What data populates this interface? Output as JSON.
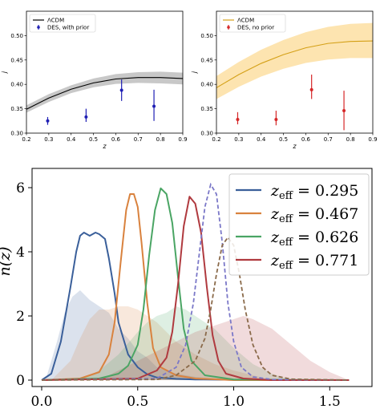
{
  "chart_data": [
    {
      "type": "scatter",
      "xlabel": "z",
      "ylabel": "j",
      "xlim": [
        0.2,
        0.9
      ],
      "ylim": [
        0.3,
        0.55
      ],
      "xticks": [
        "0.2",
        "0.3",
        "0.4",
        "0.5",
        "0.6",
        "0.7",
        "0.8",
        "0.9"
      ],
      "yticks": [
        "0.30",
        "0.35",
        "0.40",
        "0.45",
        "0.50"
      ],
      "legend_position": "top-left",
      "model": {
        "name": "ΛCDM",
        "color": "#000000",
        "band_color": "#c8c8c8",
        "x": [
          0.2,
          0.3,
          0.4,
          0.5,
          0.6,
          0.7,
          0.8,
          0.9
        ],
        "y": [
          0.349,
          0.372,
          0.39,
          0.403,
          0.411,
          0.414,
          0.414,
          0.412
        ],
        "lo": [
          0.342,
          0.364,
          0.382,
          0.394,
          0.401,
          0.403,
          0.402,
          0.4
        ],
        "hi": [
          0.357,
          0.38,
          0.398,
          0.412,
          0.421,
          0.425,
          0.426,
          0.424
        ]
      },
      "series": [
        {
          "name": "DES, with prior",
          "color": "#1f1fb4",
          "x": [
            0.295,
            0.467,
            0.626,
            0.771
          ],
          "y": [
            0.325,
            0.333,
            0.388,
            0.355
          ],
          "yerr_lo": [
            0.008,
            0.01,
            0.022,
            0.03
          ],
          "yerr_hi": [
            0.008,
            0.017,
            0.022,
            0.034
          ]
        }
      ]
    },
    {
      "type": "scatter",
      "xlabel": "z",
      "ylabel": "j",
      "xlim": [
        0.2,
        0.9
      ],
      "ylim": [
        0.3,
        0.55
      ],
      "xticks": [
        "0.2",
        "0.3",
        "0.4",
        "0.5",
        "0.6",
        "0.7",
        "0.8",
        "0.9"
      ],
      "yticks": [
        "0.30",
        "0.35",
        "0.40",
        "0.45",
        "0.50"
      ],
      "legend_position": "top-left",
      "model": {
        "name": "ΛCDM",
        "color": "#d4a017",
        "band_color": "#fde4b0",
        "x": [
          0.2,
          0.3,
          0.4,
          0.5,
          0.6,
          0.7,
          0.8,
          0.9
        ],
        "y": [
          0.393,
          0.42,
          0.443,
          0.461,
          0.475,
          0.484,
          0.488,
          0.489
        ],
        "lo": [
          0.37,
          0.395,
          0.416,
          0.432,
          0.444,
          0.451,
          0.454,
          0.454
        ],
        "hi": [
          0.417,
          0.446,
          0.471,
          0.491,
          0.507,
          0.518,
          0.524,
          0.526
        ]
      },
      "series": [
        {
          "name": "DES, no prior",
          "color": "#d62728",
          "x": [
            0.295,
            0.467,
            0.626,
            0.771
          ],
          "y": [
            0.328,
            0.328,
            0.389,
            0.346
          ],
          "yerr_lo": [
            0.01,
            0.012,
            0.019,
            0.04
          ],
          "yerr_hi": [
            0.015,
            0.018,
            0.031,
            0.041
          ]
        }
      ]
    },
    {
      "type": "line",
      "ylabel": "n(z)",
      "xlim": [
        -0.05,
        1.72
      ],
      "ylim": [
        -0.2,
        6.6
      ],
      "xticks": [
        "0.0",
        "0.5",
        "1.0",
        "1.5"
      ],
      "yticks": [
        "0",
        "2",
        "4",
        "6"
      ],
      "legend_position": "top-right",
      "legend": [
        {
          "label": "z_eff = 0.295",
          "sub": "eff",
          "value": "0.295",
          "color": "#3a5f9a"
        },
        {
          "label": "z_eff = 0.467",
          "sub": "eff",
          "value": "0.467",
          "color": "#d9823e"
        },
        {
          "label": "z_eff = 0.626",
          "sub": "eff",
          "value": "0.626",
          "color": "#4aa564"
        },
        {
          "label": "z_eff = 0.771",
          "sub": "eff",
          "value": "0.771",
          "color": "#b03a3f"
        }
      ],
      "solid_series": [
        {
          "name": "z_eff = 0.295",
          "color": "#3a5f9a",
          "x": [
            0.0,
            0.05,
            0.1,
            0.15,
            0.18,
            0.2,
            0.22,
            0.25,
            0.28,
            0.3,
            0.33,
            0.35,
            0.38,
            0.4,
            0.45,
            0.5,
            0.55,
            0.6,
            0.7,
            0.8,
            1.0,
            1.2,
            1.6
          ],
          "y": [
            0.0,
            0.2,
            1.2,
            2.9,
            4.0,
            4.5,
            4.6,
            4.5,
            4.6,
            4.55,
            4.4,
            3.8,
            2.7,
            1.8,
            0.8,
            0.4,
            0.18,
            0.08,
            0.04,
            0.02,
            0.01,
            0.0,
            0.0
          ]
        },
        {
          "name": "z_eff = 0.467",
          "color": "#d9823e",
          "x": [
            0.0,
            0.2,
            0.3,
            0.35,
            0.38,
            0.41,
            0.44,
            0.46,
            0.48,
            0.5,
            0.52,
            0.55,
            0.58,
            0.62,
            0.7,
            0.8,
            1.0,
            1.6
          ],
          "y": [
            0.0,
            0.05,
            0.25,
            0.8,
            1.8,
            3.6,
            5.3,
            5.8,
            5.8,
            5.4,
            4.3,
            2.4,
            1.0,
            0.4,
            0.15,
            0.05,
            0.0,
            0.0
          ]
        },
        {
          "name": "z_eff = 0.626",
          "color": "#4aa564",
          "x": [
            0.0,
            0.3,
            0.4,
            0.45,
            0.5,
            0.53,
            0.56,
            0.59,
            0.62,
            0.65,
            0.68,
            0.71,
            0.74,
            0.78,
            0.85,
            1.0,
            1.6
          ],
          "y": [
            0.0,
            0.05,
            0.2,
            0.45,
            1.1,
            2.2,
            3.9,
            5.3,
            5.98,
            5.8,
            4.9,
            3.2,
            1.6,
            0.6,
            0.15,
            0.02,
            0.0
          ]
        },
        {
          "name": "z_eff = 0.771",
          "color": "#b03a3f",
          "x": [
            0.0,
            0.5,
            0.6,
            0.65,
            0.68,
            0.71,
            0.74,
            0.77,
            0.8,
            0.83,
            0.86,
            0.89,
            0.92,
            0.96,
            1.05,
            1.2,
            1.6
          ],
          "y": [
            0.0,
            0.05,
            0.3,
            0.7,
            1.5,
            3.0,
            4.8,
            5.72,
            5.5,
            4.6,
            2.9,
            1.4,
            0.6,
            0.2,
            0.05,
            0.0,
            0.0
          ]
        }
      ],
      "dashed_series": [
        {
          "color": "#7b78c8",
          "x": [
            0.0,
            0.6,
            0.7,
            0.75,
            0.79,
            0.82,
            0.85,
            0.88,
            0.91,
            0.94,
            0.97,
            1.0,
            1.04,
            1.1,
            1.2,
            1.6
          ],
          "y": [
            0.0,
            0.05,
            0.4,
            1.1,
            2.4,
            3.9,
            5.4,
            6.1,
            5.8,
            4.3,
            2.4,
            1.2,
            0.4,
            0.1,
            0.02,
            0.0
          ]
        },
        {
          "color": "#8a6a4a",
          "x": [
            0.0,
            0.6,
            0.7,
            0.8,
            0.85,
            0.88,
            0.91,
            0.94,
            0.97,
            1.0,
            1.03,
            1.06,
            1.1,
            1.15,
            1.2,
            1.3,
            1.6
          ],
          "y": [
            0.0,
            0.02,
            0.15,
            0.6,
            1.3,
            2.2,
            3.3,
            4.2,
            4.45,
            4.2,
            3.3,
            2.2,
            1.1,
            0.4,
            0.15,
            0.03,
            0.0
          ]
        }
      ],
      "shaded_series": [
        {
          "color": "#3a5f9a",
          "x": [
            0.02,
            0.08,
            0.12,
            0.16,
            0.2,
            0.25,
            0.3,
            0.35,
            0.4,
            0.45,
            0.5,
            0.55,
            0.6,
            0.7,
            0.8,
            0.9,
            1.0
          ],
          "y": [
            0.0,
            1.2,
            2.1,
            2.6,
            2.8,
            2.5,
            2.3,
            2.1,
            1.6,
            1.3,
            0.9,
            0.7,
            0.4,
            0.2,
            0.1,
            0.05,
            0.0
          ]
        },
        {
          "color": "#d9823e",
          "x": [
            0.05,
            0.15,
            0.2,
            0.25,
            0.3,
            0.35,
            0.4,
            0.45,
            0.5,
            0.55,
            0.6,
            0.7,
            0.8,
            0.9,
            1.0,
            1.1,
            1.2
          ],
          "y": [
            0.0,
            0.6,
            1.3,
            1.9,
            2.2,
            2.2,
            2.3,
            2.3,
            2.2,
            2.0,
            1.8,
            1.2,
            0.8,
            0.5,
            0.3,
            0.15,
            0.0
          ]
        },
        {
          "color": "#4aa564",
          "x": [
            0.2,
            0.3,
            0.4,
            0.5,
            0.55,
            0.6,
            0.65,
            0.7,
            0.75,
            0.8,
            0.85,
            0.9,
            1.0,
            1.1,
            1.2,
            1.3
          ],
          "y": [
            0.0,
            0.3,
            0.8,
            1.5,
            1.8,
            2.0,
            2.1,
            2.3,
            2.2,
            2.0,
            1.8,
            1.6,
            1.0,
            0.5,
            0.2,
            0.0
          ]
        },
        {
          "color": "#b03a3f",
          "x": [
            0.3,
            0.4,
            0.5,
            0.6,
            0.7,
            0.8,
            0.9,
            1.0,
            1.05,
            1.1,
            1.2,
            1.3,
            1.4,
            1.5,
            1.6
          ],
          "y": [
            0.0,
            0.3,
            0.6,
            0.9,
            1.2,
            1.5,
            1.7,
            1.9,
            2.0,
            1.9,
            1.6,
            1.1,
            0.6,
            0.25,
            0.0
          ]
        }
      ]
    }
  ]
}
